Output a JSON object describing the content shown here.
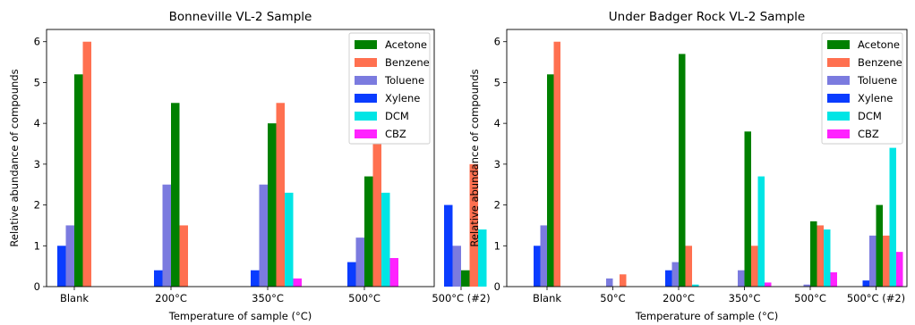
{
  "chart_data": [
    {
      "type": "bar",
      "title": "Bonneville VL-2 Sample",
      "xlabel": "Temperature of sample (°C)",
      "ylabel": "Relative abundance of compounds",
      "categories": [
        "Blank",
        "200°C",
        "350°C",
        "500°C",
        "500°C (#2)"
      ],
      "ylim": [
        0,
        6.3
      ],
      "yticks": [
        "0",
        "1",
        "2",
        "3",
        "4",
        "5",
        "6"
      ],
      "legend": "top-right",
      "series": [
        {
          "name": "Acetone",
          "color": "#008000",
          "values": [
            5.2,
            4.5,
            4.0,
            2.7,
            0.4
          ]
        },
        {
          "name": "Benzene",
          "color": "#ff7050",
          "values": [
            6.0,
            1.5,
            4.5,
            4.5,
            3.0
          ]
        },
        {
          "name": "Toluene",
          "color": "#7b7bdf",
          "values": [
            1.5,
            2.5,
            2.5,
            1.2,
            1.0
          ]
        },
        {
          "name": "Xylene",
          "color": "#0a3cff",
          "values": [
            1.0,
            0.4,
            0.4,
            0.6,
            2.0
          ]
        },
        {
          "name": "DCM",
          "color": "#00e5e5",
          "values": [
            0,
            0,
            2.3,
            2.3,
            1.4
          ]
        },
        {
          "name": "CBZ",
          "color": "#ff22ff",
          "values": [
            0,
            0,
            0.2,
            0.7,
            0
          ]
        }
      ]
    },
    {
      "type": "bar",
      "title": "Under Badger Rock VL-2 Sample",
      "xlabel": "Temperature of sample (°C)",
      "ylabel": "Relative abundance of compounds",
      "categories": [
        "Blank",
        "50°C",
        "200°C",
        "350°C",
        "500°C",
        "500°C (#2)"
      ],
      "ylim": [
        0,
        6.3
      ],
      "yticks": [
        "0",
        "1",
        "2",
        "3",
        "4",
        "5",
        "6"
      ],
      "legend": "top-right",
      "series": [
        {
          "name": "Acetone",
          "color": "#008000",
          "values": [
            5.2,
            0,
            5.7,
            3.8,
            1.6,
            2.0
          ]
        },
        {
          "name": "Benzene",
          "color": "#ff7050",
          "values": [
            6.0,
            0.3,
            1.0,
            1.0,
            1.5,
            1.25
          ]
        },
        {
          "name": "Toluene",
          "color": "#7b7bdf",
          "values": [
            1.5,
            0.2,
            0.6,
            0.4,
            0.05,
            1.25
          ]
        },
        {
          "name": "Xylene",
          "color": "#0a3cff",
          "values": [
            1.0,
            0,
            0.4,
            0,
            0,
            0.15
          ]
        },
        {
          "name": "DCM",
          "color": "#00e5e5",
          "values": [
            0,
            0,
            0.05,
            2.7,
            1.4,
            3.4
          ]
        },
        {
          "name": "CBZ",
          "color": "#ff22ff",
          "values": [
            0,
            0,
            0,
            0.1,
            0.35,
            0.85
          ]
        }
      ]
    }
  ]
}
